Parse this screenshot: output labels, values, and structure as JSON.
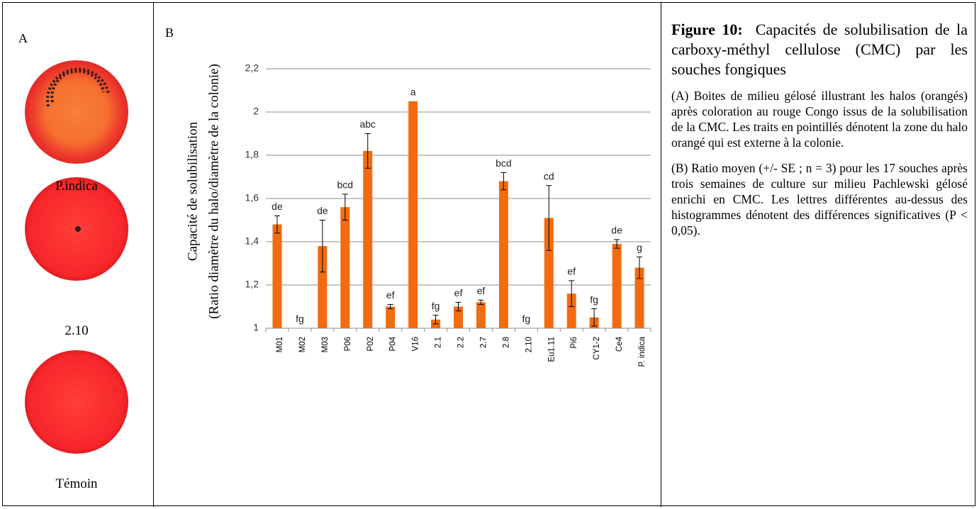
{
  "panel_a": {
    "label": "A",
    "plates": [
      "P.indica",
      "2.10",
      "Témoin"
    ]
  },
  "chart_data": {
    "type": "bar",
    "panel_label": "B",
    "ylabel": [
      "Capacité de solubilisation",
      "(Ratio diamètre du halo/diamètre de la colonie)"
    ],
    "categories": [
      "M01",
      "M02",
      "M03",
      "P06",
      "P02",
      "P04",
      "V16",
      "2.1",
      "2.2",
      "2.7",
      "2.8",
      "2.10",
      "Eu1.11",
      "Pi6",
      "CY1-2",
      "Ce4",
      "P. indica"
    ],
    "values": [
      1.48,
      1.0,
      1.38,
      1.56,
      1.82,
      1.1,
      2.05,
      1.04,
      1.1,
      1.12,
      1.68,
      1.0,
      1.51,
      1.16,
      1.05,
      1.39,
      1.28
    ],
    "errors": [
      0.04,
      null,
      0.12,
      0.06,
      0.08,
      0.01,
      null,
      0.02,
      0.02,
      0.01,
      0.04,
      null,
      0.15,
      0.06,
      0.04,
      0.02,
      0.05
    ],
    "letters": [
      "de",
      "fg",
      "de",
      "bcd",
      "abc",
      "ef",
      "a",
      "fg",
      "ef",
      "ef",
      "bcd",
      "fg",
      "cd",
      "ef",
      "fg",
      "de",
      "g"
    ],
    "color": "#f26b0f",
    "ylim": [
      1,
      2.2
    ],
    "yticks": [
      1,
      {
        "value": 1.2,
        "label": "1,2"
      },
      {
        "value": 1.4,
        "label": "1,4"
      },
      {
        "value": 1.6,
        "label": "1,6"
      },
      {
        "value": 1.8,
        "label": "1,8"
      },
      2,
      {
        "value": 2.2,
        "label": "2,2"
      }
    ],
    "grid": true
  },
  "caption": {
    "title": "Figure 10:",
    "title_text": "Capacités de solubilisation de la carboxy-méthyl cellulose (CMC) par les souches fongiques",
    "paragraphs": [
      "(A) Boites de milieu gélosé illustrant les halos (orangés) après coloration au rouge Congo issus de la solubilisation de la CMC. Les traits en pointillés dénotent la zone du halo orangé qui est externe à la colonie.",
      "(B) Ratio moyen (+/- SE ; n = 3) pour les 17 souches après trois semaines de culture sur milieu Pachlewski gélosé enrichi en CMC. Les lettres différentes au-dessus des histogrammes dénotent des différences significatives (P < 0,05)."
    ]
  }
}
